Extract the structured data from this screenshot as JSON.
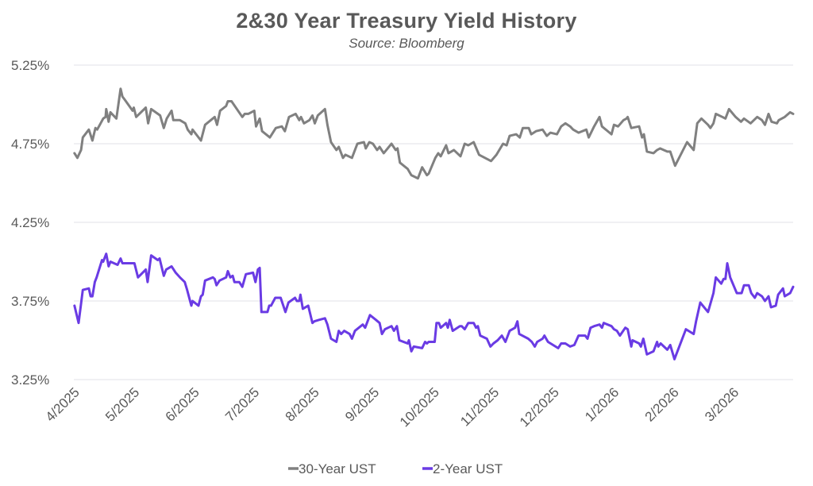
{
  "chart_data": {
    "type": "line",
    "title": "2&30 Year Treasury Yield History",
    "subtitle": "Source: Bloomberg",
    "xlabel": "",
    "ylabel": "",
    "x_units": "months since 4/2025",
    "xlim": [
      0,
      12
    ],
    "ylim": [
      3.25,
      5.25
    ],
    "y_ticks": [
      3.25,
      3.75,
      4.25,
      4.75,
      5.25
    ],
    "y_tick_labels": [
      "3.25%",
      "3.75%",
      "4.25%",
      "4.75%",
      "5.25%"
    ],
    "x_ticks": [
      0,
      1,
      2,
      3,
      4,
      5,
      6,
      7,
      8,
      9,
      10,
      11
    ],
    "x_tick_labels": [
      "4/2025",
      "5/2025",
      "6/2025",
      "7/2025",
      "8/2025",
      "9/2025",
      "10/2025",
      "11/2025",
      "12/2025",
      "1/2026",
      "2/2026",
      "3/2026"
    ],
    "grid": true,
    "legend_position": "bottom",
    "series": [
      {
        "name": "30-Year UST",
        "color": "#808080",
        "x": [
          0.01,
          0.06,
          0.12,
          0.15,
          0.25,
          0.31,
          0.36,
          0.39,
          0.49,
          0.53,
          0.54,
          0.58,
          0.61,
          0.71,
          0.78,
          0.81,
          0.85,
          0.98,
          1.0,
          1.04,
          1.2,
          1.24,
          1.29,
          1.44,
          1.5,
          1.55,
          1.63,
          1.66,
          1.77,
          1.86,
          1.9,
          1.96,
          1.98,
          2.12,
          2.19,
          2.35,
          2.39,
          2.44,
          2.54,
          2.57,
          2.63,
          2.81,
          2.85,
          2.91,
          3.01,
          3.04,
          3.1,
          3.14,
          3.27,
          3.32,
          3.37,
          3.47,
          3.52,
          3.59,
          3.7,
          3.76,
          3.79,
          3.84,
          3.93,
          3.98,
          4.02,
          4.07,
          4.19,
          4.23,
          4.29,
          4.38,
          4.42,
          4.49,
          4.53,
          4.64,
          4.73,
          4.84,
          4.87,
          4.93,
          4.99,
          5.06,
          5.1,
          5.17,
          5.3,
          5.37,
          5.4,
          5.44,
          5.57,
          5.63,
          5.74,
          5.81,
          5.89,
          5.92,
          6.03,
          6.08,
          6.12,
          6.21,
          6.25,
          6.34,
          6.45,
          6.52,
          6.58,
          6.67,
          6.76,
          6.96,
          7.05,
          7.16,
          7.22,
          7.27,
          7.38,
          7.44,
          7.49,
          7.59,
          7.63,
          7.71,
          7.82,
          7.89,
          7.95,
          8.06,
          8.13,
          8.2,
          8.28,
          8.33,
          8.42,
          8.55,
          8.59,
          8.68,
          8.77,
          8.81,
          8.97,
          9.01,
          9.08,
          9.17,
          9.22,
          9.24,
          9.3,
          9.43,
          9.48,
          9.51,
          9.56,
          9.67,
          9.73,
          9.78,
          9.9,
          9.95,
          10.03,
          10.23,
          10.34,
          10.4,
          10.47,
          10.58,
          10.62,
          10.67,
          10.71,
          10.82,
          10.87,
          10.93,
          11.04,
          11.13,
          11.18,
          11.29,
          11.4,
          11.48,
          11.53,
          11.59,
          11.64,
          11.73,
          11.76,
          11.86,
          11.95,
          12.0
        ],
        "y": [
          4.69,
          4.66,
          4.71,
          4.79,
          4.84,
          4.77,
          4.85,
          4.84,
          4.91,
          4.92,
          4.97,
          4.89,
          4.95,
          4.91,
          5.1,
          5.05,
          5.03,
          4.96,
          4.98,
          4.92,
          4.98,
          4.88,
          4.97,
          4.93,
          4.85,
          4.91,
          4.96,
          4.9,
          4.9,
          4.88,
          4.84,
          4.81,
          4.84,
          4.77,
          4.87,
          4.92,
          4.87,
          4.96,
          4.99,
          5.02,
          5.02,
          4.92,
          4.94,
          4.94,
          4.96,
          4.86,
          4.91,
          4.83,
          4.79,
          4.82,
          4.85,
          4.86,
          4.83,
          4.92,
          4.94,
          4.9,
          4.92,
          4.88,
          4.9,
          4.93,
          4.88,
          4.93,
          4.97,
          4.87,
          4.76,
          4.71,
          4.73,
          4.66,
          4.68,
          4.66,
          4.75,
          4.76,
          4.72,
          4.76,
          4.75,
          4.71,
          4.73,
          4.69,
          4.75,
          4.71,
          4.72,
          4.63,
          4.59,
          4.55,
          4.53,
          4.6,
          4.55,
          4.56,
          4.66,
          4.69,
          4.67,
          4.74,
          4.69,
          4.71,
          4.67,
          4.75,
          4.74,
          4.76,
          4.68,
          4.64,
          4.68,
          4.75,
          4.74,
          4.8,
          4.81,
          4.79,
          4.85,
          4.85,
          4.81,
          4.83,
          4.84,
          4.8,
          4.82,
          4.81,
          4.86,
          4.88,
          4.86,
          4.84,
          4.82,
          4.84,
          4.79,
          4.86,
          4.92,
          4.86,
          4.81,
          4.87,
          4.86,
          4.9,
          4.91,
          4.92,
          4.85,
          4.86,
          4.79,
          4.81,
          4.7,
          4.69,
          4.71,
          4.72,
          4.7,
          4.7,
          4.61,
          4.76,
          4.71,
          4.88,
          4.91,
          4.87,
          4.85,
          4.88,
          4.94,
          4.92,
          4.91,
          4.97,
          4.92,
          4.89,
          4.91,
          4.88,
          4.92,
          4.9,
          4.87,
          4.94,
          4.89,
          4.88,
          4.9,
          4.92,
          4.95,
          4.94
        ]
      },
      {
        "name": "2-Year UST",
        "color": "#6a3be4",
        "x": [
          0.01,
          0.08,
          0.15,
          0.25,
          0.28,
          0.31,
          0.35,
          0.38,
          0.47,
          0.49,
          0.51,
          0.54,
          0.58,
          0.61,
          0.73,
          0.78,
          0.81,
          0.99,
          1.01,
          1.07,
          1.2,
          1.23,
          1.29,
          1.4,
          1.43,
          1.5,
          1.54,
          1.63,
          1.7,
          1.77,
          1.85,
          1.89,
          1.96,
          1.98,
          2.08,
          2.12,
          2.15,
          2.19,
          2.32,
          2.35,
          2.38,
          2.43,
          2.54,
          2.57,
          2.61,
          2.65,
          2.68,
          2.76,
          2.81,
          2.87,
          2.99,
          3.03,
          3.07,
          3.1,
          3.13,
          3.23,
          3.26,
          3.29,
          3.36,
          3.45,
          3.53,
          3.58,
          3.69,
          3.72,
          3.76,
          3.78,
          3.82,
          3.91,
          3.98,
          4.01,
          4.09,
          4.19,
          4.23,
          4.29,
          4.38,
          4.42,
          4.46,
          4.51,
          4.6,
          4.64,
          4.69,
          4.82,
          4.86,
          4.94,
          5.04,
          5.1,
          5.14,
          5.19,
          5.3,
          5.34,
          5.39,
          5.43,
          5.57,
          5.59,
          5.63,
          5.67,
          5.81,
          5.86,
          5.89,
          5.92,
          6.02,
          6.05,
          6.09,
          6.12,
          6.21,
          6.24,
          6.27,
          6.32,
          6.44,
          6.47,
          6.52,
          6.58,
          6.67,
          6.71,
          6.74,
          6.78,
          6.89,
          6.95,
          7.0,
          7.07,
          7.14,
          7.2,
          7.27,
          7.36,
          7.4,
          7.43,
          7.58,
          7.64,
          7.69,
          7.73,
          7.82,
          7.85,
          7.91,
          8.08,
          8.13,
          8.2,
          8.28,
          8.35,
          8.42,
          8.53,
          8.57,
          8.62,
          8.68,
          8.77,
          8.81,
          8.84,
          8.97,
          9.01,
          9.06,
          9.11,
          9.2,
          9.24,
          9.3,
          9.32,
          9.43,
          9.46,
          9.5,
          9.56,
          9.67,
          9.73,
          9.75,
          9.79,
          9.9,
          9.95,
          10.02,
          10.21,
          10.34,
          10.38,
          10.45,
          10.58,
          10.67,
          10.71,
          10.8,
          10.84,
          10.87,
          10.9,
          10.95,
          11.06,
          11.14,
          11.18,
          11.26,
          11.3,
          11.36,
          11.4,
          11.48,
          11.53,
          11.59,
          11.63,
          11.71,
          11.75,
          11.83,
          11.86,
          11.95,
          12.0
        ],
        "y": [
          3.72,
          3.61,
          3.82,
          3.83,
          3.78,
          3.78,
          3.87,
          3.9,
          4.01,
          4.0,
          4.02,
          4.05,
          3.97,
          4.0,
          3.98,
          4.02,
          3.99,
          3.99,
          3.99,
          3.9,
          3.95,
          3.87,
          4.04,
          4.01,
          4.02,
          3.91,
          3.95,
          3.97,
          3.93,
          3.9,
          3.87,
          3.82,
          3.72,
          3.75,
          3.72,
          3.78,
          3.79,
          3.88,
          3.9,
          3.89,
          3.85,
          3.88,
          3.9,
          3.94,
          3.9,
          3.91,
          3.87,
          3.87,
          3.84,
          3.92,
          3.93,
          3.87,
          3.95,
          3.96,
          3.68,
          3.68,
          3.72,
          3.72,
          3.77,
          3.77,
          3.68,
          3.74,
          3.77,
          3.75,
          3.75,
          3.79,
          3.7,
          3.72,
          3.61,
          3.62,
          3.63,
          3.64,
          3.6,
          3.51,
          3.49,
          3.56,
          3.54,
          3.56,
          3.54,
          3.51,
          3.56,
          3.6,
          3.58,
          3.66,
          3.63,
          3.61,
          3.54,
          3.57,
          3.59,
          3.56,
          3.59,
          3.5,
          3.48,
          3.5,
          3.43,
          3.46,
          3.45,
          3.49,
          3.48,
          3.49,
          3.49,
          3.61,
          3.61,
          3.58,
          3.61,
          3.58,
          3.63,
          3.56,
          3.59,
          3.59,
          3.57,
          3.61,
          3.61,
          3.58,
          3.59,
          3.53,
          3.51,
          3.46,
          3.48,
          3.5,
          3.53,
          3.49,
          3.56,
          3.58,
          3.62,
          3.54,
          3.51,
          3.49,
          3.46,
          3.49,
          3.51,
          3.53,
          3.49,
          3.45,
          3.48,
          3.48,
          3.46,
          3.47,
          3.53,
          3.53,
          3.51,
          3.58,
          3.59,
          3.6,
          3.58,
          3.61,
          3.59,
          3.57,
          3.56,
          3.53,
          3.58,
          3.57,
          3.46,
          3.5,
          3.48,
          3.46,
          3.51,
          3.41,
          3.43,
          3.49,
          3.46,
          3.48,
          3.44,
          3.47,
          3.38,
          3.57,
          3.54,
          3.62,
          3.74,
          3.68,
          3.8,
          3.9,
          3.86,
          3.89,
          3.89,
          3.99,
          3.9,
          3.8,
          3.8,
          3.85,
          3.85,
          3.8,
          3.77,
          3.8,
          3.78,
          3.75,
          3.78,
          3.71,
          3.72,
          3.79,
          3.83,
          3.78,
          3.8,
          3.84
        ]
      }
    ]
  }
}
